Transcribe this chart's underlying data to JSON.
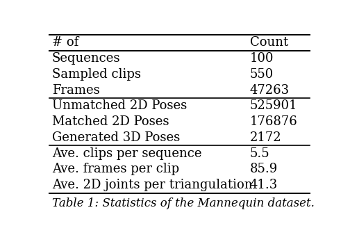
{
  "header": [
    "# of",
    "Count"
  ],
  "sections": [
    {
      "rows": [
        [
          "Sequences",
          "100"
        ],
        [
          "Sampled clips",
          "550"
        ],
        [
          "Frames",
          "47263"
        ]
      ]
    },
    {
      "rows": [
        [
          "Unmatched 2D Poses",
          "525901"
        ],
        [
          "Matched 2D Poses",
          "176876"
        ],
        [
          "Generated 3D Poses",
          "2172"
        ]
      ]
    },
    {
      "rows": [
        [
          "Ave. clips per sequence",
          "5.5"
        ],
        [
          "Ave. frames per clip",
          "85.9"
        ],
        [
          "Ave. 2D joints per triangulation",
          "41.3"
        ]
      ]
    }
  ],
  "caption": "Table 1: Statistics of the Mannequin dataset.",
  "font_size": 13,
  "caption_font_size": 12,
  "header_font_size": 13,
  "bg_color": "#ffffff",
  "text_color": "#000000",
  "line_color": "#000000"
}
